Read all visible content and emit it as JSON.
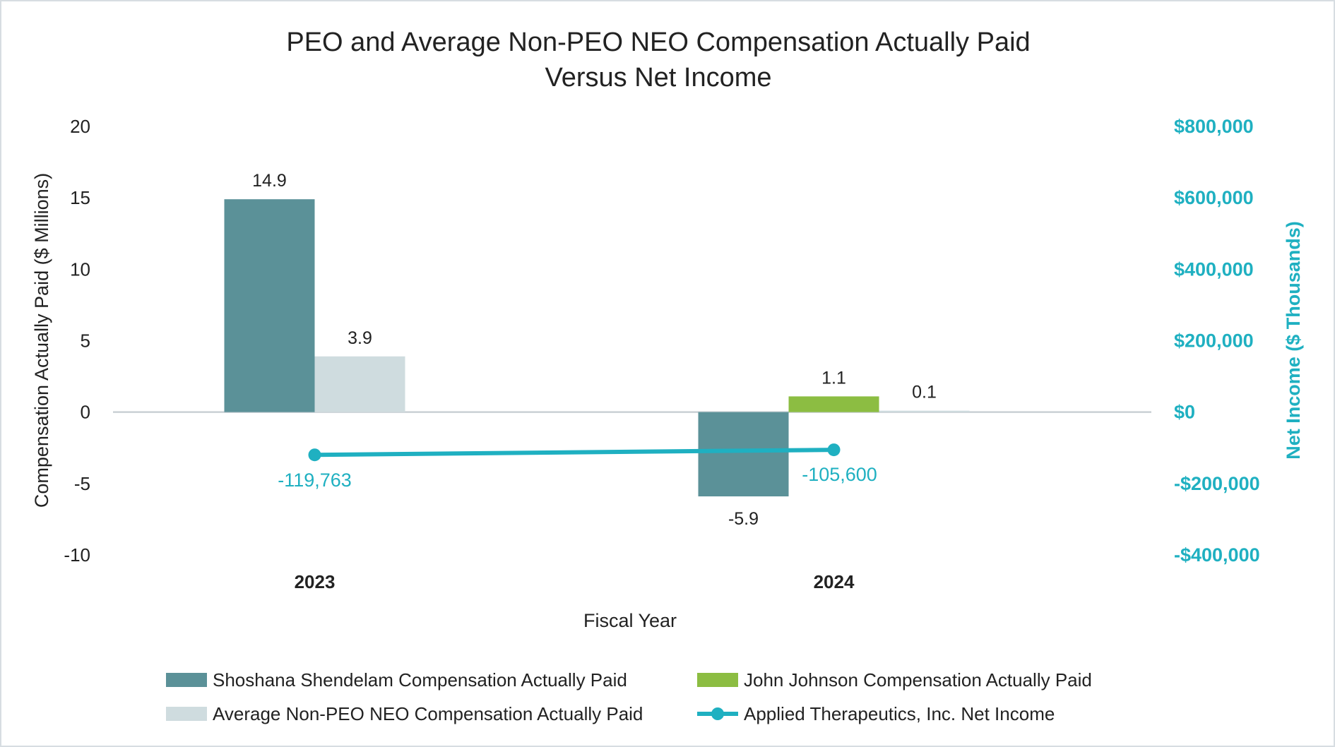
{
  "chart_data": {
    "type": "bar",
    "title_lines": [
      "PEO and Average Non-PEO NEO Compensation Actually Paid",
      "Versus Net Income"
    ],
    "xlabel": "Fiscal Year",
    "ylabel": "Compensation Actually Paid ($ Millions)",
    "y2label": "Net Income ($ Thousands)",
    "categories": [
      "2023",
      "2024"
    ],
    "ylim": [
      -10,
      20
    ],
    "yticks": [
      20,
      15,
      10,
      5,
      0,
      -5,
      -10
    ],
    "y2lim": [
      -400000,
      800000
    ],
    "y2ticks": [
      {
        "value": 800000,
        "label": "$800,000"
      },
      {
        "value": 600000,
        "label": "$600,000"
      },
      {
        "value": 400000,
        "label": "$400,000"
      },
      {
        "value": 200000,
        "label": "$200,000"
      },
      {
        "value": 0,
        "label": "$0"
      },
      {
        "value": -200000,
        "label": "-$200,000"
      },
      {
        "value": -400000,
        "label": "-$400,000"
      }
    ],
    "series": [
      {
        "name": "Shoshana Shendelam Compensation Actually Paid",
        "kind": "bar",
        "color": "#5b9198",
        "values": [
          14.9,
          -5.9
        ],
        "labels": [
          "14.9",
          "-5.9"
        ]
      },
      {
        "name": "John Johnson Compensation Actually Paid",
        "kind": "bar",
        "color": "#8cbd42",
        "values": [
          null,
          1.1
        ],
        "labels": [
          "",
          "1.1"
        ]
      },
      {
        "name": "Average Non-PEO NEO Compensation Actually Paid",
        "kind": "bar",
        "color": "#cfdcdf",
        "values": [
          3.9,
          0.1
        ],
        "labels": [
          "3.9",
          "0.1"
        ]
      },
      {
        "name": "Applied Therapeutics, Inc. Net Income",
        "kind": "line",
        "axis": "y2",
        "color": "#1fb0c1",
        "values": [
          -119763,
          -105600
        ],
        "labels": [
          "-119,763",
          "-105,600"
        ]
      }
    ],
    "legend": {
      "placement": "bottom",
      "columns": 2
    }
  },
  "colors": {
    "axis_text": "#222222",
    "secondary_axis": "#1fb0c1",
    "zero_line": "#c9d0d4"
  }
}
